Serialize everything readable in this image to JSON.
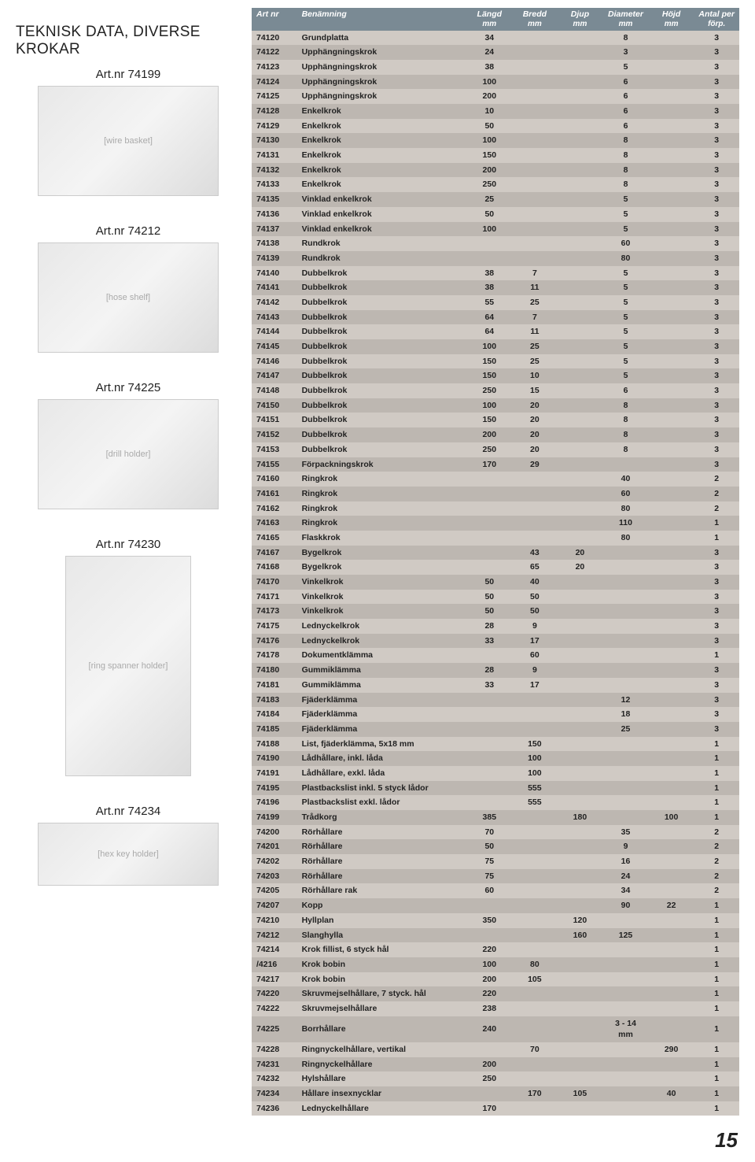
{
  "title": "TEKNISK DATA, DIVERSE KROKAR",
  "page_number": "15",
  "products": [
    {
      "caption": "Art.nr 74199",
      "imgClass": "product-image",
      "placeholder": "[wire basket]"
    },
    {
      "caption": "Art.nr 74212",
      "imgClass": "product-image",
      "placeholder": "[hose shelf]"
    },
    {
      "caption": "Art.nr 74225",
      "imgClass": "product-image",
      "placeholder": "[drill holder]"
    },
    {
      "caption": "Art.nr 74230",
      "imgClass": "product-image tall",
      "placeholder": "[ring spanner holder]"
    },
    {
      "caption": "Art.nr 74234",
      "imgClass": "product-image low",
      "placeholder": "[hex key holder]"
    }
  ],
  "table": {
    "header_bg": "#7a8a94",
    "header_fg": "#ffffff",
    "row_odd_bg": "#d0cac4",
    "row_even_bg": "#bdb7b1",
    "columns": [
      {
        "label": "Art nr",
        "sub": ""
      },
      {
        "label": "Benämning",
        "sub": ""
      },
      {
        "label": "Längd",
        "sub": "mm"
      },
      {
        "label": "Bredd",
        "sub": "mm"
      },
      {
        "label": "Djup",
        "sub": "mm"
      },
      {
        "label": "Diameter",
        "sub": "mm"
      },
      {
        "label": "Höjd",
        "sub": "mm"
      },
      {
        "label": "Antal per",
        "sub": "förp."
      }
    ],
    "rows": [
      [
        "74120",
        "Grundplatta",
        "34",
        "",
        "",
        "8",
        "",
        "3"
      ],
      [
        "74122",
        "Upphängningskrok",
        "24",
        "",
        "",
        "3",
        "",
        "3"
      ],
      [
        "74123",
        "Upphängningskrok",
        "38",
        "",
        "",
        "5",
        "",
        "3"
      ],
      [
        "74124",
        "Upphängningskrok",
        "100",
        "",
        "",
        "6",
        "",
        "3"
      ],
      [
        "74125",
        "Upphängningskrok",
        "200",
        "",
        "",
        "6",
        "",
        "3"
      ],
      [
        "74128",
        "Enkelkrok",
        "10",
        "",
        "",
        "6",
        "",
        "3"
      ],
      [
        "74129",
        "Enkelkrok",
        "50",
        "",
        "",
        "6",
        "",
        "3"
      ],
      [
        "74130",
        "Enkelkrok",
        "100",
        "",
        "",
        "8",
        "",
        "3"
      ],
      [
        "74131",
        "Enkelkrok",
        "150",
        "",
        "",
        "8",
        "",
        "3"
      ],
      [
        "74132",
        "Enkelkrok",
        "200",
        "",
        "",
        "8",
        "",
        "3"
      ],
      [
        "74133",
        "Enkelkrok",
        "250",
        "",
        "",
        "8",
        "",
        "3"
      ],
      [
        "74135",
        "Vinklad enkelkrok",
        "25",
        "",
        "",
        "5",
        "",
        "3"
      ],
      [
        "74136",
        "Vinklad enkelkrok",
        "50",
        "",
        "",
        "5",
        "",
        "3"
      ],
      [
        "74137",
        "Vinklad enkelkrok",
        "100",
        "",
        "",
        "5",
        "",
        "3"
      ],
      [
        "74138",
        "Rundkrok",
        "",
        "",
        "",
        "60",
        "",
        "3"
      ],
      [
        "74139",
        "Rundkrok",
        "",
        "",
        "",
        "80",
        "",
        "3"
      ],
      [
        "74140",
        "Dubbelkrok",
        "38",
        "7",
        "",
        "5",
        "",
        "3"
      ],
      [
        "74141",
        "Dubbelkrok",
        "38",
        "11",
        "",
        "5",
        "",
        "3"
      ],
      [
        "74142",
        "Dubbelkrok",
        "55",
        "25",
        "",
        "5",
        "",
        "3"
      ],
      [
        "74143",
        "Dubbelkrok",
        "64",
        "7",
        "",
        "5",
        "",
        "3"
      ],
      [
        "74144",
        "Dubbelkrok",
        "64",
        "11",
        "",
        "5",
        "",
        "3"
      ],
      [
        "74145",
        "Dubbelkrok",
        "100",
        "25",
        "",
        "5",
        "",
        "3"
      ],
      [
        "74146",
        "Dubbelkrok",
        "150",
        "25",
        "",
        "5",
        "",
        "3"
      ],
      [
        "74147",
        "Dubbelkrok",
        "150",
        "10",
        "",
        "5",
        "",
        "3"
      ],
      [
        "74148",
        "Dubbelkrok",
        "250",
        "15",
        "",
        "6",
        "",
        "3"
      ],
      [
        "74150",
        "Dubbelkrok",
        "100",
        "20",
        "",
        "8",
        "",
        "3"
      ],
      [
        "74151",
        "Dubbelkrok",
        "150",
        "20",
        "",
        "8",
        "",
        "3"
      ],
      [
        "74152",
        "Dubbelkrok",
        "200",
        "20",
        "",
        "8",
        "",
        "3"
      ],
      [
        "74153",
        "Dubbelkrok",
        "250",
        "20",
        "",
        "8",
        "",
        "3"
      ],
      [
        "74155",
        "Förpackningskrok",
        "170",
        "29",
        "",
        "",
        "",
        "3"
      ],
      [
        "74160",
        "Ringkrok",
        "",
        "",
        "",
        "40",
        "",
        "2"
      ],
      [
        "74161",
        "Ringkrok",
        "",
        "",
        "",
        "60",
        "",
        "2"
      ],
      [
        "74162",
        "Ringkrok",
        "",
        "",
        "",
        "80",
        "",
        "2"
      ],
      [
        "74163",
        "Ringkrok",
        "",
        "",
        "",
        "110",
        "",
        "1"
      ],
      [
        "74165",
        "Flaskkrok",
        "",
        "",
        "",
        "80",
        "",
        "1"
      ],
      [
        "74167",
        "Bygelkrok",
        "",
        "43",
        "20",
        "",
        "",
        "3"
      ],
      [
        "74168",
        "Bygelkrok",
        "",
        "65",
        "20",
        "",
        "",
        "3"
      ],
      [
        "74170",
        "Vinkelkrok",
        "50",
        "40",
        "",
        "",
        "",
        "3"
      ],
      [
        "74171",
        "Vinkelkrok",
        "50",
        "50",
        "",
        "",
        "",
        "3"
      ],
      [
        "74173",
        "Vinkelkrok",
        "50",
        "50",
        "",
        "",
        "",
        "3"
      ],
      [
        "74175",
        "Lednyckelkrok",
        "28",
        "9",
        "",
        "",
        "",
        "3"
      ],
      [
        "74176",
        "Lednyckelkrok",
        "33",
        "17",
        "",
        "",
        "",
        "3"
      ],
      [
        "74178",
        "Dokumentklämma",
        "",
        "60",
        "",
        "",
        "",
        "1"
      ],
      [
        "74180",
        "Gummiklämma",
        "28",
        "9",
        "",
        "",
        "",
        "3"
      ],
      [
        "74181",
        "Gummiklämma",
        "33",
        "17",
        "",
        "",
        "",
        "3"
      ],
      [
        "74183",
        "Fjäderklämma",
        "",
        "",
        "",
        "12",
        "",
        "3"
      ],
      [
        "74184",
        "Fjäderklämma",
        "",
        "",
        "",
        "18",
        "",
        "3"
      ],
      [
        "74185",
        "Fjäderklämma",
        "",
        "",
        "",
        "25",
        "",
        "3"
      ],
      [
        "74188",
        "List, fjäderklämma, 5x18 mm",
        "",
        "150",
        "",
        "",
        "",
        "1"
      ],
      [
        "74190",
        "Lådhållare, inkl. låda",
        "",
        "100",
        "",
        "",
        "",
        "1"
      ],
      [
        "74191",
        "Lådhållare, exkl. låda",
        "",
        "100",
        "",
        "",
        "",
        "1"
      ],
      [
        "74195",
        "Plastbackslist inkl. 5 styck lådor",
        "",
        "555",
        "",
        "",
        "",
        "1"
      ],
      [
        "74196",
        "Plastbackslist exkl. lådor",
        "",
        "555",
        "",
        "",
        "",
        "1"
      ],
      [
        "74199",
        "Trådkorg",
        "385",
        "",
        "180",
        "",
        "100",
        "1"
      ],
      [
        "74200",
        "Rörhållare",
        "70",
        "",
        "",
        "35",
        "",
        "2"
      ],
      [
        "74201",
        "Rörhållare",
        "50",
        "",
        "",
        "9",
        "",
        "2"
      ],
      [
        "74202",
        "Rörhållare",
        "75",
        "",
        "",
        "16",
        "",
        "2"
      ],
      [
        "74203",
        "Rörhållare",
        "75",
        "",
        "",
        "24",
        "",
        "2"
      ],
      [
        "74205",
        "Rörhållare rak",
        "60",
        "",
        "",
        "34",
        "",
        "2"
      ],
      [
        "74207",
        "Kopp",
        "",
        "",
        "",
        "90",
        "22",
        "1"
      ],
      [
        "74210",
        "Hyllplan",
        "350",
        "",
        "120",
        "",
        "",
        "1"
      ],
      [
        "74212",
        "Slanghylla",
        "",
        "",
        "160",
        "125",
        "",
        "1"
      ],
      [
        "74214",
        "Krok fillist, 6 styck hål",
        "220",
        "",
        "",
        "",
        "",
        "1"
      ],
      [
        "/4216",
        "Krok bobin",
        "100",
        "80",
        "",
        "",
        "",
        "1"
      ],
      [
        "74217",
        "Krok bobin",
        "200",
        "105",
        "",
        "",
        "",
        "1"
      ],
      [
        "74220",
        "Skruvmejselhållare, 7 styck. hål",
        "220",
        "",
        "",
        "",
        "",
        "1"
      ],
      [
        "74222",
        "Skruvmejselhållare",
        "238",
        "",
        "",
        "",
        "",
        "1"
      ],
      [
        "74225",
        "Borrhållare",
        "240",
        "",
        "",
        "3 - 14 mm",
        "",
        "1"
      ],
      [
        "74228",
        "Ringnyckelhållare, vertikal",
        "",
        "70",
        "",
        "",
        "290",
        "1"
      ],
      [
        "74231",
        "Ringnyckelhållare",
        "200",
        "",
        "",
        "",
        "",
        "1"
      ],
      [
        "74232",
        "Hylshållare",
        "250",
        "",
        "",
        "",
        "",
        "1"
      ],
      [
        "74234",
        "Hållare insexnycklar",
        "",
        "170",
        "105",
        "",
        "40",
        "1"
      ],
      [
        "74236",
        "Lednyckelhållare",
        "170",
        "",
        "",
        "",
        "",
        "1"
      ]
    ]
  }
}
